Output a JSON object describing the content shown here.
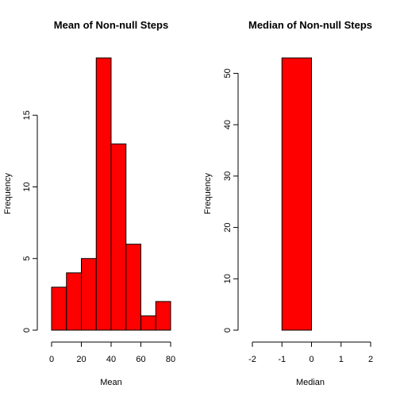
{
  "chart_data": [
    {
      "type": "bar",
      "title": "Mean of Non-null Steps",
      "xlabel": "Mean",
      "ylabel": "Frequency",
      "bin_edges": [
        0,
        10,
        20,
        30,
        40,
        50,
        60,
        70,
        80
      ],
      "values": [
        3,
        4,
        5,
        19,
        13,
        6,
        1,
        2
      ],
      "xticks": [
        0,
        20,
        40,
        60,
        80
      ],
      "yticks": [
        0,
        5,
        10,
        15
      ],
      "xlim": [
        0,
        80
      ],
      "ylim": [
        0,
        19
      ],
      "bar_color": "#ff0000",
      "grid": false
    },
    {
      "type": "bar",
      "title": "Median of Non-null Steps",
      "xlabel": "Median",
      "ylabel": "Frequency",
      "bin_edges": [
        -1,
        0
      ],
      "values": [
        53
      ],
      "xticks": [
        -2,
        -1,
        0,
        1,
        2
      ],
      "yticks": [
        0,
        10,
        20,
        30,
        40,
        50
      ],
      "xlim": [
        -2,
        2
      ],
      "ylim": [
        0,
        53
      ],
      "bar_color": "#ff0000",
      "grid": false
    }
  ]
}
